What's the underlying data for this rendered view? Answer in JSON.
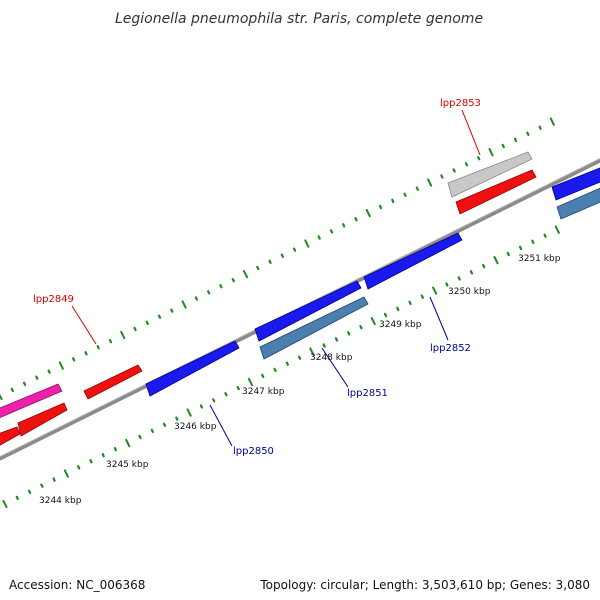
{
  "title": "Legionella pneumophila str. Paris, complete genome",
  "colors": {
    "backbone": "#8a8a8a",
    "tick": "#1f8a1f",
    "forward_strand": "#ee1111",
    "reverse_strand": "#1a1aee",
    "reverse_alt": "#4a7fb0",
    "pseudo": "#c8c8c8",
    "rna": "#ee22aa",
    "label_forward": "#dd0000",
    "label_reverse": "#000099"
  },
  "scale_labels": [
    "3244 kbp",
    "3245 kbp",
    "3246 kbp",
    "3247 kbp",
    "3248 kbp",
    "3249 kbp",
    "3250 kbp",
    "3251 kbp"
  ],
  "gene_labels": [
    {
      "text": "lpp2849",
      "strand": "forward"
    },
    {
      "text": "lpp2853",
      "strand": "forward"
    },
    {
      "text": "lpp2850",
      "strand": "reverse"
    },
    {
      "text": "lpp2851",
      "strand": "reverse"
    },
    {
      "text": "lpp2852",
      "strand": "reverse"
    }
  ],
  "footer": {
    "accession": "Accession: NC_006368",
    "summary": "Topology: circular; Length: 3,503,610 bp; Genes: 3,080"
  }
}
